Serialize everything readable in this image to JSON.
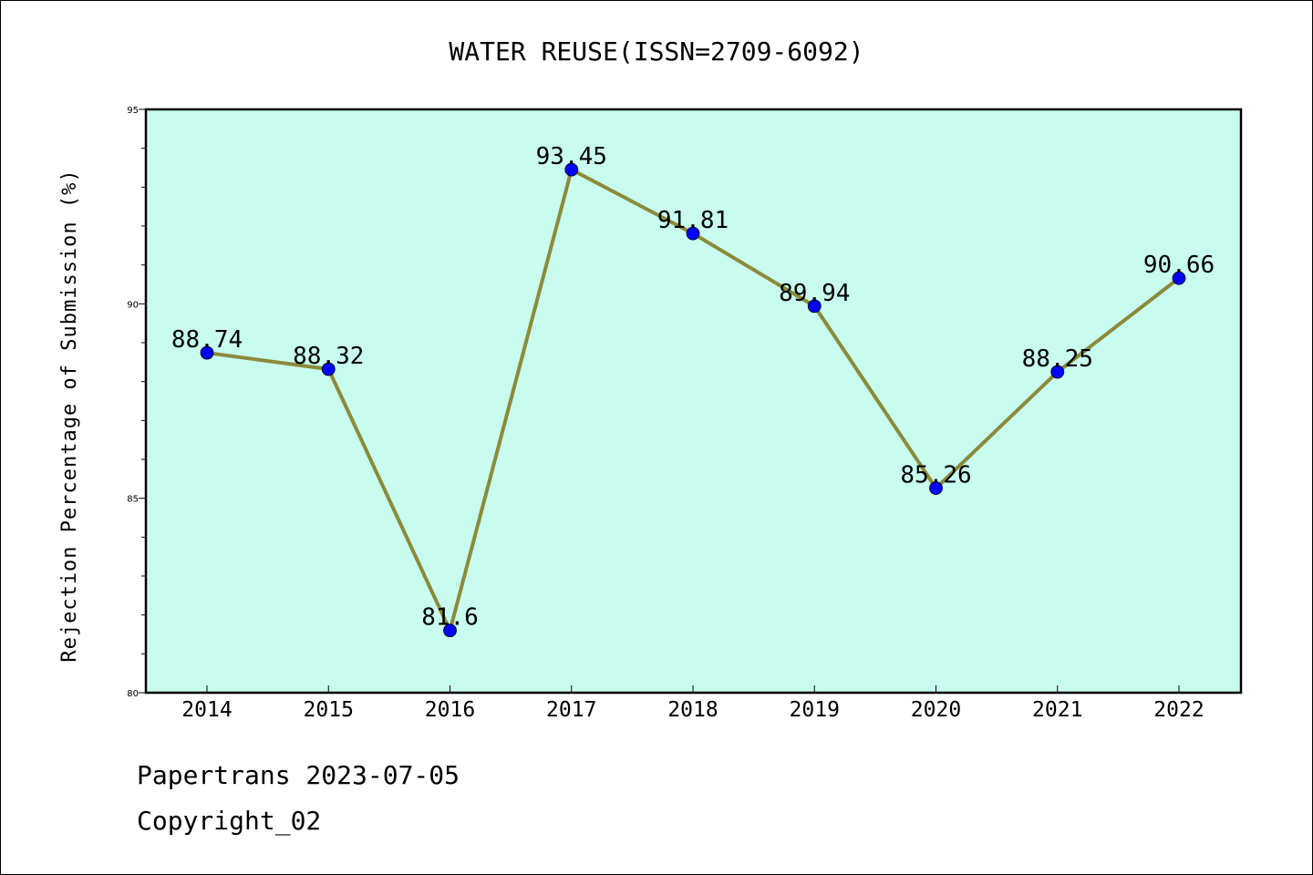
{
  "chart_data": {
    "type": "line",
    "title": "WATER REUSE(ISSN=2709-6092)",
    "xlabel": "",
    "ylabel": "Rejection Percentage of Submission (%)",
    "categories": [
      "2014",
      "2015",
      "2016",
      "2017",
      "2018",
      "2019",
      "2020",
      "2021",
      "2022"
    ],
    "values": [
      88.74,
      88.32,
      81.6,
      93.45,
      91.81,
      89.94,
      85.26,
      88.25,
      90.66
    ],
    "data_labels": [
      "88.74",
      "88.32",
      "81.6",
      "93.45",
      "91.81",
      "89.94",
      "85.26",
      "88.25",
      "90.66"
    ],
    "ylim": [
      80,
      95
    ],
    "yticks": [
      "80",
      "85",
      "90",
      "95"
    ],
    "grid": false,
    "colors": {
      "plot_background": "#c8fcee",
      "line": "#8b8a3a",
      "marker": "#0000ff"
    }
  },
  "footer": {
    "line1": "Papertrans 2023-07-05",
    "line2": "Copyright_02"
  }
}
